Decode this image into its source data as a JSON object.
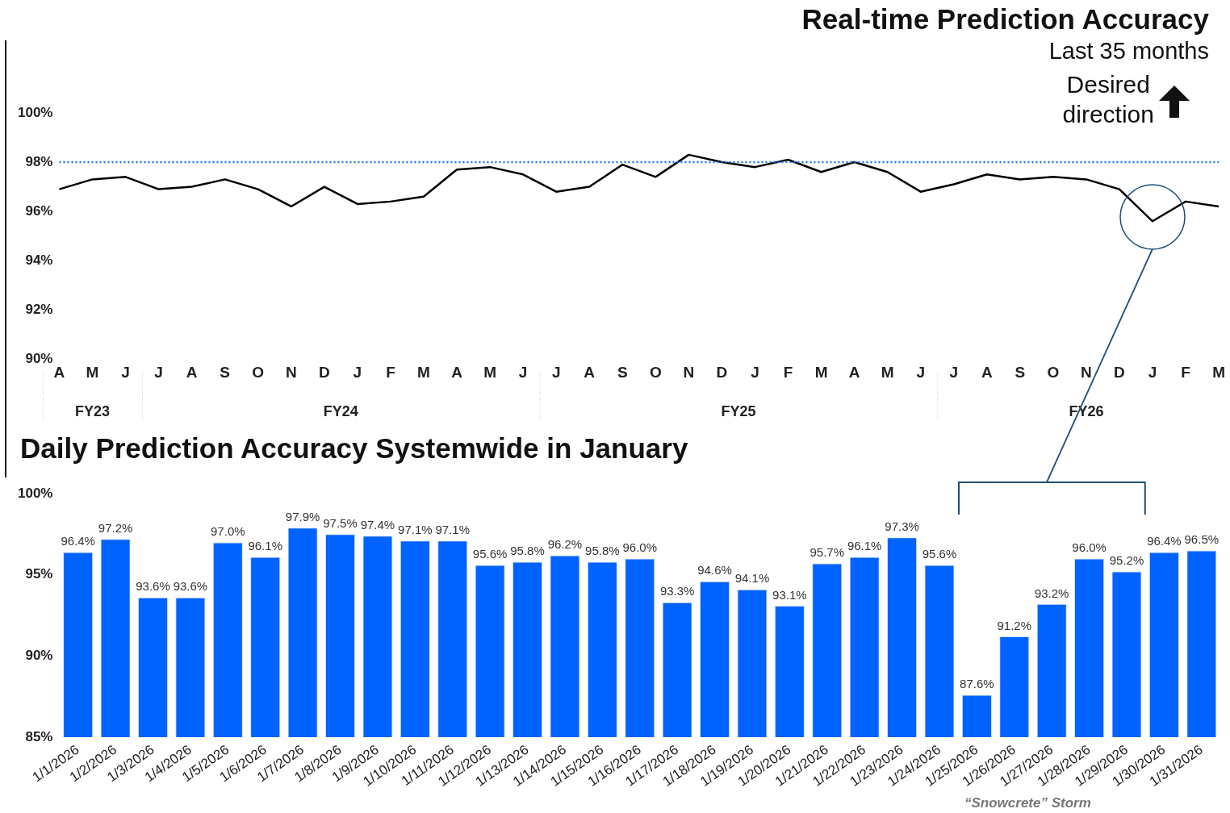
{
  "chart_data": [
    {
      "type": "line",
      "title": "Real-time Prediction Accuracy",
      "subtitle": "Last 35 months",
      "categories": [
        "A",
        "M",
        "J",
        "J",
        "A",
        "S",
        "O",
        "N",
        "D",
        "J",
        "F",
        "M",
        "A",
        "M",
        "J",
        "J",
        "A",
        "S",
        "O",
        "N",
        "D",
        "J",
        "F",
        "M",
        "A",
        "M",
        "J",
        "J",
        "A",
        "S",
        "O",
        "N",
        "D",
        "J",
        "F",
        "M"
      ],
      "values": [
        96.9,
        97.3,
        97.4,
        96.9,
        97.0,
        97.3,
        96.9,
        96.2,
        97.0,
        96.3,
        96.4,
        96.6,
        97.7,
        97.8,
        97.5,
        96.8,
        97.0,
        97.9,
        97.4,
        98.3,
        98.0,
        97.8,
        98.1,
        97.6,
        98.0,
        97.6,
        96.8,
        97.1,
        97.5,
        97.3,
        97.4,
        97.3,
        96.9,
        95.6,
        96.4,
        96.2
      ],
      "color": "#000000",
      "marker": "none",
      "line_style": "solid",
      "ylim": [
        90,
        100
      ],
      "yticks": [
        {
          "value": 90,
          "label": "90%"
        },
        {
          "value": 92,
          "label": "92%"
        },
        {
          "value": 94,
          "label": "94%"
        },
        {
          "value": 96,
          "label": "96%"
        },
        {
          "value": 98,
          "label": "98%"
        },
        {
          "value": 100,
          "label": "100%"
        }
      ],
      "ref_lines": [
        {
          "axis": "y",
          "value": 98,
          "color": "#1a73e8",
          "line_style": "dotted"
        }
      ],
      "annotations": [
        "Desired direction",
        "FY23",
        "FY24",
        "FY25",
        "FY26"
      ]
    },
    {
      "type": "bar",
      "title": "Daily Prediction Accuracy Systemwide in January",
      "categories": [
        "1/1/2026",
        "1/2/2026",
        "1/3/2026",
        "1/4/2026",
        "1/5/2026",
        "1/6/2026",
        "1/7/2026",
        "1/8/2026",
        "1/9/2026",
        "1/10/2026",
        "1/11/2026",
        "1/12/2026",
        "1/13/2026",
        "1/14/2026",
        "1/15/2026",
        "1/16/2026",
        "1/17/2026",
        "1/18/2026",
        "1/19/2026",
        "1/20/2026",
        "1/21/2026",
        "1/22/2026",
        "1/23/2026",
        "1/24/2026",
        "1/25/2026",
        "1/26/2026",
        "1/27/2026",
        "1/28/2026",
        "1/29/2026",
        "1/30/2026",
        "1/31/2026"
      ],
      "values": [
        96.4,
        97.2,
        93.6,
        93.6,
        97.0,
        96.1,
        97.9,
        97.5,
        97.4,
        97.1,
        97.1,
        95.6,
        95.8,
        96.2,
        95.8,
        96.0,
        93.3,
        94.6,
        94.1,
        93.1,
        95.7,
        96.1,
        97.3,
        95.6,
        87.6,
        91.2,
        93.2,
        96.0,
        95.2,
        96.4,
        96.5
      ],
      "value_labels": [
        "96.4%",
        "97.2%",
        "93.6%",
        "93.6%",
        "97.0%",
        "96.1%",
        "97.9%",
        "97.5%",
        "97.4%",
        "97.1%",
        "97.1%",
        "95.6%",
        "95.8%",
        "96.2%",
        "95.8%",
        "96.0%",
        "93.3%",
        "94.6%",
        "94.1%",
        "93.1%",
        "95.7%",
        "96.1%",
        "97.3%",
        "95.6%",
        "87.6%",
        "91.2%",
        "93.2%",
        "96.0%",
        "95.2%",
        "96.4%",
        "96.5%"
      ],
      "color": "#0062ff",
      "ylim": [
        85,
        100
      ],
      "yticks": [
        {
          "value": 85,
          "label": "85%"
        },
        {
          "value": 90,
          "label": "90%"
        },
        {
          "value": 95,
          "label": "95%"
        },
        {
          "value": 100,
          "label": "100%"
        }
      ],
      "annotations": [
        "“Snowcrete” Storm"
      ]
    }
  ]
}
